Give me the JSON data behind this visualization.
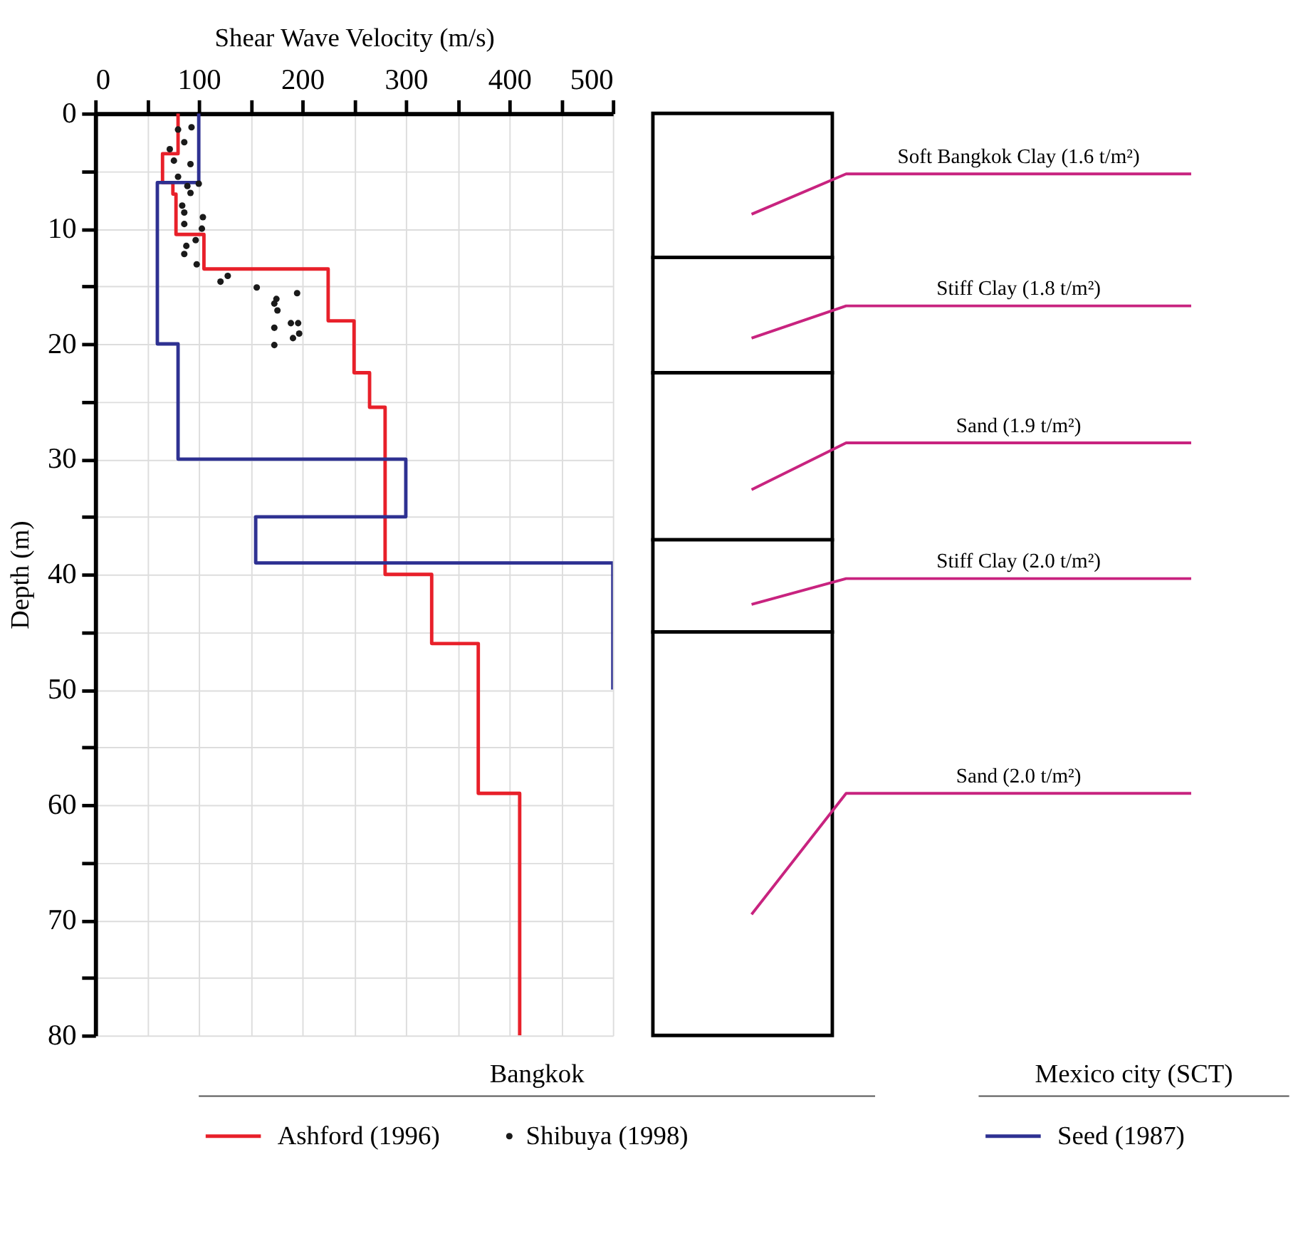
{
  "chart_data": [
    {
      "type": "line",
      "xlabel": "Shear Wave Velocity (m/s)",
      "ylabel": "Depth (m)",
      "xlim": [
        0,
        500
      ],
      "ylim": [
        80,
        0
      ],
      "xticks": [
        0,
        {
          "value": 50,
          "label": null
        },
        100,
        {
          "value": 150,
          "label": null
        },
        200,
        {
          "value": 250,
          "label": null
        },
        300,
        {
          "value": 350,
          "label": null
        },
        400,
        {
          "value": 450,
          "label": null
        },
        500
      ],
      "yticks": [
        0,
        {
          "value": 5,
          "label": null
        },
        10,
        {
          "value": 15,
          "label": null
        },
        20,
        {
          "value": 25,
          "label": null
        },
        30,
        {
          "value": 35,
          "label": null
        },
        40,
        {
          "value": 45,
          "label": null
        },
        50,
        {
          "value": 55,
          "label": null
        },
        60,
        {
          "value": 65,
          "label": null
        },
        70,
        {
          "value": 75,
          "label": null
        },
        80
      ],
      "grid": true,
      "legend": "bottom",
      "annotations": [
        "Bangkok",
        "Mexico city (SCT)"
      ],
      "series": [
        {
          "name": "Ashford (1996)",
          "color": "#e8202a",
          "x": [
            80,
            80,
            65,
            65,
            75,
            75,
            78,
            78,
            105,
            105,
            225,
            225,
            250,
            250,
            265,
            265,
            280,
            280,
            325,
            325,
            370,
            370,
            410,
            410
          ],
          "values": [
            0,
            3.5,
            3.5,
            6,
            6,
            7,
            7,
            10.5,
            10.5,
            13.5,
            13.5,
            18,
            18,
            22.5,
            22.5,
            25.5,
            25.5,
            40,
            40,
            46,
            46,
            59,
            59,
            80
          ]
        },
        {
          "name": "Shibuya (1998)",
          "type": "scatter",
          "marker": "circle",
          "color": "#1a1a1a",
          "x": [
            93,
            80,
            86,
            72,
            76,
            92,
            80,
            100,
            89,
            92,
            84,
            86,
            104,
            86,
            103,
            97,
            88,
            86,
            98,
            121,
            128,
            156,
            175,
            195,
            173,
            176,
            189,
            196,
            173,
            197,
            191,
            173
          ],
          "values": [
            1.2,
            1.4,
            2.5,
            3.1,
            4.1,
            4.4,
            5.5,
            6.1,
            6.3,
            6.9,
            8.0,
            8.6,
            9.0,
            9.6,
            10.0,
            11.0,
            11.5,
            12.2,
            13.1,
            14.6,
            14.1,
            15.1,
            16.1,
            15.6,
            16.5,
            17.1,
            18.2,
            18.2,
            18.6,
            19.1,
            19.5,
            20.1
          ]
        },
        {
          "name": "Seed (1987)",
          "color": "#2e3192",
          "x": [
            100,
            100,
            60,
            60,
            80,
            80,
            300,
            300,
            155,
            155,
            500,
            500
          ],
          "values": [
            0,
            6,
            6,
            20,
            20,
            30,
            30,
            35,
            35,
            39,
            39,
            50
          ]
        }
      ]
    },
    {
      "type": "bar",
      "stacked": true,
      "categories": [
        null
      ],
      "ylim": [
        80,
        0
      ],
      "tick_labels": false,
      "series": [
        {
          "name": "Soft Bangkok Clay (1.6 t/m²)",
          "color": "#ffffff",
          "values": [
            12.5
          ]
        },
        {
          "name": "Stiff Clay (1.8 t/m²)",
          "color": "#ffffff",
          "values": [
            10
          ]
        },
        {
          "name": "Sand (1.9 t/m²)",
          "color": "#ffffff",
          "values": [
            14.5
          ]
        },
        {
          "name": "Stiff Clay (2.0 t/m²)",
          "color": "#ffffff",
          "values": [
            8
          ]
        },
        {
          "name": "Sand (2.0 t/m²)",
          "color": "#ffffff",
          "values": [
            35
          ]
        }
      ]
    }
  ]
}
